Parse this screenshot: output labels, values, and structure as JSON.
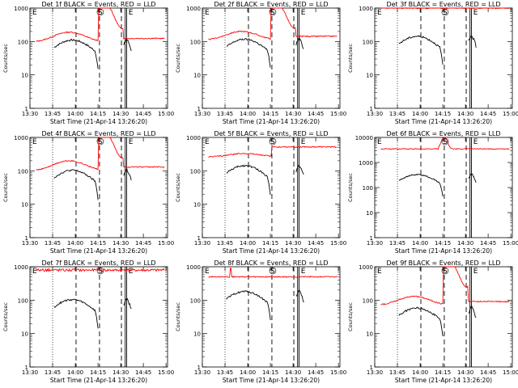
{
  "page": {
    "start_label": "Start Time (21-Apr-14 13:26:20)",
    "ylabel": "Counts/sec"
  },
  "colors": {
    "events": "#000000",
    "lld": "#ff0000",
    "background": "#ffffff"
  },
  "x_ticks": [
    "13:30",
    "13:45",
    "14:00",
    "14:15",
    "14:30",
    "14:45",
    "15:00"
  ],
  "annotations": {
    "s_mark": "S",
    "e_mark": "E"
  },
  "chart_data": [
    {
      "type": "line",
      "title": "Det 1f BLACK = Events, RED = LLD",
      "xlabel": "Start Time (21-Apr-14 13:26:20)",
      "ylabel": "Counts/sec",
      "scale": "log",
      "ylim": [
        1,
        1000
      ],
      "y_ticks": [
        1,
        10,
        100,
        1000
      ],
      "lld_profile": "rise",
      "lld_base": 95,
      "lld_peak": 190,
      "events_peak": 85
    },
    {
      "type": "line",
      "title": "Det 2f BLACK = Events, RED = LLD",
      "xlabel": "Start Time (21-Apr-14 13:26:20)",
      "ylabel": "Counts/sec",
      "scale": "log",
      "ylim": [
        1,
        1000
      ],
      "y_ticks": [
        1,
        10,
        100,
        1000
      ],
      "lld_profile": "rise",
      "lld_base": 110,
      "lld_peak": 200,
      "events_peak": 90
    },
    {
      "type": "line",
      "title": "Det 3f BLACK = Events, RED = LLD",
      "xlabel": "Start Time (21-Apr-14 13:26:20)",
      "ylabel": "Counts/sec",
      "scale": "log",
      "ylim": [
        1,
        1000
      ],
      "y_ticks": [
        1,
        10,
        100,
        1000
      ],
      "lld_profile": "flat",
      "lld_base": 1000,
      "lld_peak": 1000,
      "events_peak": 110
    },
    {
      "type": "line",
      "title": "Det 4f BLACK = Events, RED = LLD",
      "xlabel": "Start Time (21-Apr-14 13:26:20)",
      "ylabel": "Counts/sec",
      "scale": "log",
      "ylim": [
        1,
        1000
      ],
      "y_ticks": [
        1,
        10,
        100,
        1000
      ],
      "lld_profile": "rise",
      "lld_base": 100,
      "lld_peak": 200,
      "events_peak": 80
    },
    {
      "type": "line",
      "title": "Det 5f BLACK = Events, RED = LLD",
      "xlabel": "Start Time (21-Apr-14 13:26:20)",
      "ylabel": "Counts/sec",
      "scale": "log",
      "ylim": [
        1,
        1000
      ],
      "y_ticks": [
        1,
        10,
        100,
        1000
      ],
      "lld_profile": "hump",
      "lld_base": 260,
      "lld_peak": 330,
      "events_peak": 110
    },
    {
      "type": "line",
      "title": "Det 6f BLACK = Events, RED = LLD",
      "xlabel": "Start Time (21-Apr-14 13:26:20)",
      "ylabel": "Counts/sec",
      "scale": "log",
      "ylim": [
        1,
        10000
      ],
      "y_ticks": [
        1,
        10,
        100,
        1000,
        10000
      ],
      "lld_profile": "bump",
      "lld_base": 3500,
      "lld_peak": 10000,
      "events_peak": 250
    },
    {
      "type": "line",
      "title": "Det 7f BLACK = Events, RED = LLD",
      "xlabel": "Start Time (21-Apr-14 13:26:20)",
      "ylabel": "Counts/sec",
      "scale": "log",
      "ylim": [
        1,
        1000
      ],
      "y_ticks": [
        1,
        10,
        100,
        1000
      ],
      "lld_profile": "flat_noisy",
      "lld_base": 800,
      "lld_peak": 850,
      "events_peak": 80
    },
    {
      "type": "line",
      "title": "Det 8f BLACK = Events, RED = LLD",
      "xlabel": "Start Time (21-Apr-14 13:26:20)",
      "ylabel": "Counts/sec",
      "scale": "log",
      "ylim": [
        1,
        1000
      ],
      "y_ticks": [
        1,
        10,
        100,
        1000
      ],
      "lld_profile": "flat_spike",
      "lld_base": 500,
      "lld_peak": 900,
      "events_peak": 140
    },
    {
      "type": "line",
      "title": "Det 9f BLACK = Events, RED = LLD",
      "xlabel": "Start Time (21-Apr-14 13:26:20)",
      "ylabel": "Counts/sec",
      "scale": "log",
      "ylim": [
        1,
        1000
      ],
      "y_ticks": [
        1,
        10,
        100,
        1000
      ],
      "lld_profile": "rise_high",
      "lld_base": 70,
      "lld_peak": 130,
      "events_peak": 45
    }
  ]
}
